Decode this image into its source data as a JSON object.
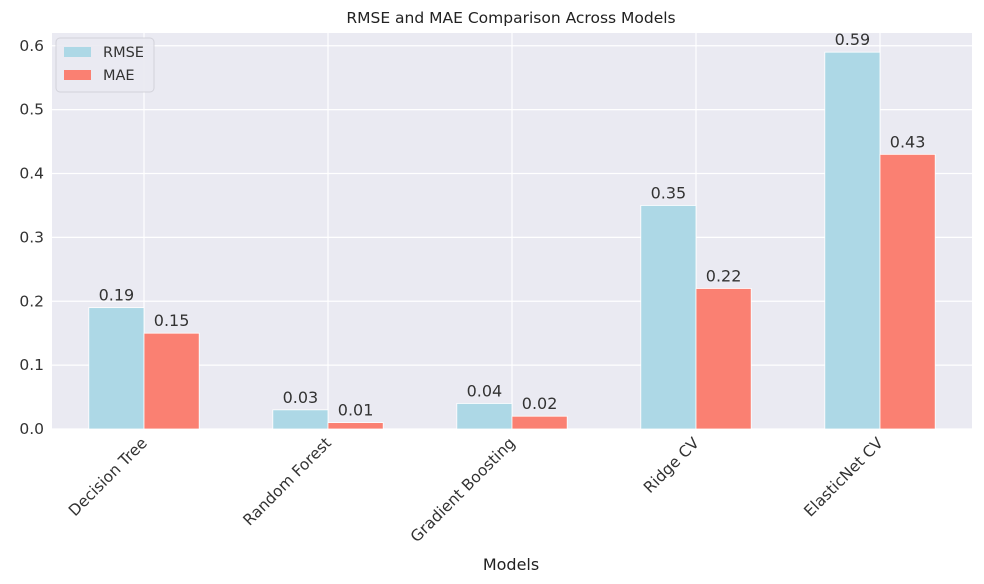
{
  "chart_data": {
    "type": "bar",
    "title": "RMSE and MAE Comparison Across Models",
    "xlabel": "Models",
    "ylabel": "",
    "categories": [
      "Decision Tree",
      "Random Forest",
      "Gradient Boosting",
      "Ridge CV",
      "ElasticNet CV"
    ],
    "series": [
      {
        "name": "RMSE",
        "values": [
          0.19,
          0.03,
          0.04,
          0.35,
          0.59
        ],
        "labels": [
          "0.19",
          "0.03",
          "0.04",
          "0.35",
          "0.59"
        ],
        "color": "#add8e6"
      },
      {
        "name": "MAE",
        "values": [
          0.15,
          0.01,
          0.02,
          0.22,
          0.43
        ],
        "labels": [
          "0.15",
          "0.01",
          "0.02",
          "0.22",
          "0.43"
        ],
        "color": "#fa8072"
      }
    ],
    "ylim": [
      0,
      0.62
    ],
    "yticks": [
      "0.0",
      "0.1",
      "0.2",
      "0.3",
      "0.4",
      "0.5",
      "0.6"
    ],
    "grid": true,
    "legend_position": "top-left",
    "tick_label_rotation": "45 degrees",
    "background_color": "#eaeaf2"
  }
}
